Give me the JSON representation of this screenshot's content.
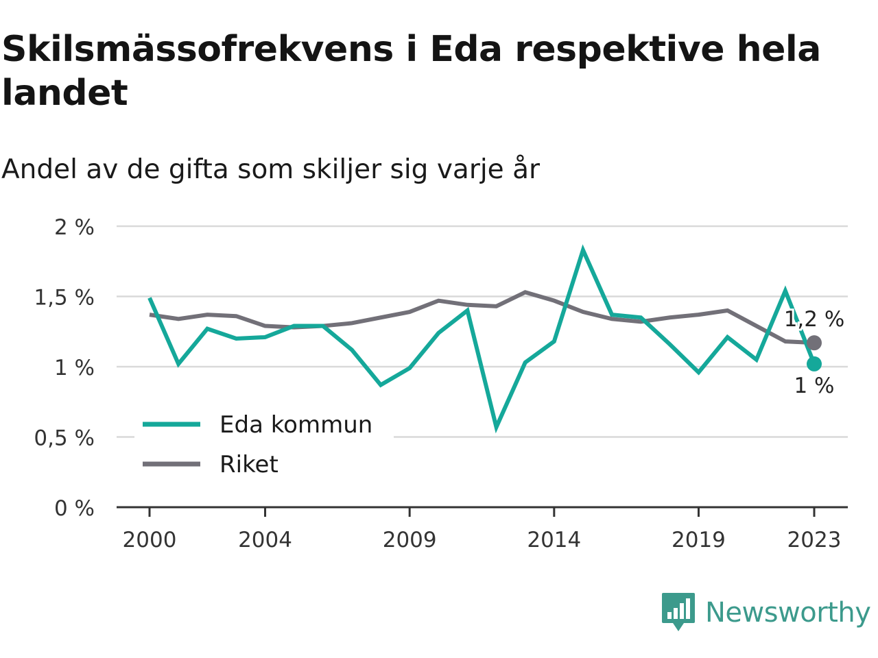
{
  "title": "Skilsmässofrekvens i Eda respektive hela landet",
  "subtitle": "Andel av de gifta som skiljer sig varje år",
  "brand": {
    "name": "Newsworthy",
    "icon": "newsworthy-logo-icon",
    "color": "#3c9a8c"
  },
  "chart_data": {
    "type": "line",
    "title": "Skilsmässofrekvens i Eda respektive hela landet",
    "subtitle": "Andel av de gifta som skiljer sig varje år",
    "xlabel": "",
    "ylabel": "",
    "x": [
      2000,
      2001,
      2002,
      2003,
      2004,
      2005,
      2006,
      2007,
      2008,
      2009,
      2010,
      2011,
      2012,
      2013,
      2014,
      2015,
      2016,
      2017,
      2018,
      2019,
      2020,
      2021,
      2022,
      2023
    ],
    "x_ticks": [
      2000,
      2004,
      2009,
      2014,
      2019,
      2023
    ],
    "y_ticks": [
      0,
      0.5,
      1,
      1.5,
      2
    ],
    "y_tick_labels": [
      "0 %",
      "0,5 %",
      "1 %",
      "1,5 %",
      "2 %"
    ],
    "ylim": [
      0,
      2
    ],
    "grid": true,
    "legend_position": "bottom-left",
    "series": [
      {
        "name": "Eda kommun",
        "color": "#15a89a",
        "values": [
          1.49,
          1.02,
          1.27,
          1.2,
          1.21,
          1.29,
          1.29,
          1.12,
          0.87,
          0.99,
          1.24,
          1.4,
          0.57,
          1.03,
          1.18,
          1.83,
          1.37,
          1.35,
          1.16,
          0.96,
          1.21,
          1.05,
          1.54,
          1.02
        ],
        "end_label": "1 %"
      },
      {
        "name": "Riket",
        "color": "#727078",
        "values": [
          1.37,
          1.34,
          1.37,
          1.36,
          1.29,
          1.28,
          1.29,
          1.31,
          1.35,
          1.39,
          1.47,
          1.44,
          1.43,
          1.53,
          1.47,
          1.39,
          1.34,
          1.32,
          1.35,
          1.37,
          1.4,
          1.29,
          1.18,
          1.17
        ],
        "end_label": "1,2 %"
      }
    ]
  }
}
